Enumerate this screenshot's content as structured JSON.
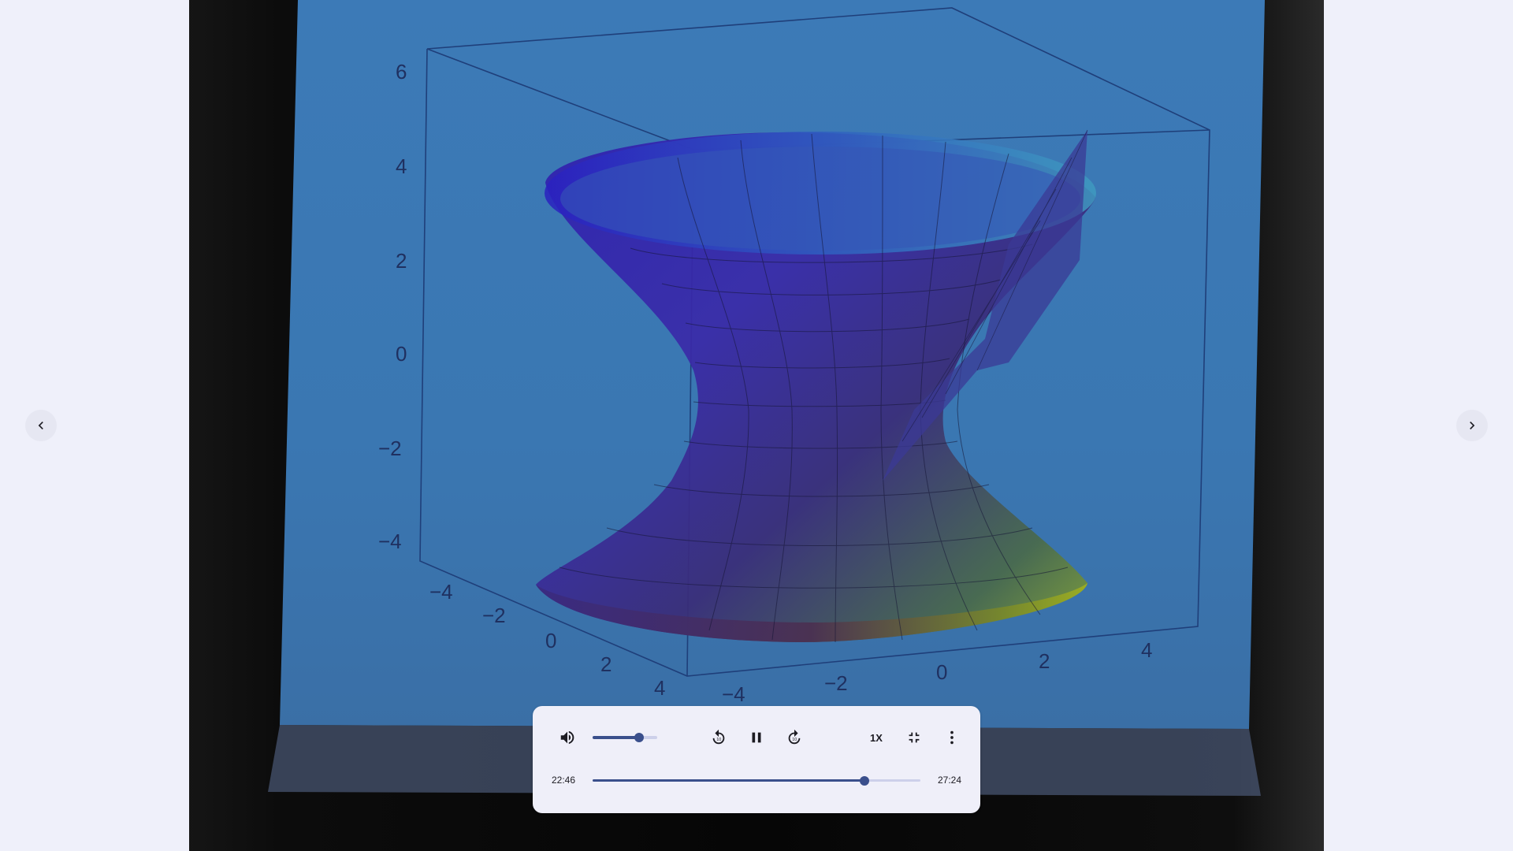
{
  "player": {
    "current_time": "22:46",
    "duration": "27:24",
    "progress_fraction": 0.83,
    "volume_fraction": 0.72,
    "speed_label": "1X"
  },
  "video": {
    "z_ticks": [
      "6",
      "4",
      "2",
      "0",
      "−2",
      "−4"
    ],
    "x_ticks": [
      "−4",
      "−2",
      "0",
      "2",
      "4"
    ],
    "y_ticks": [
      "−4",
      "−2",
      "0",
      "2",
      "4"
    ]
  },
  "icons": {
    "prev": "chevron-left-icon",
    "next": "chevron-right-icon",
    "volume": "volume-up-icon",
    "rewind": "replay-10-icon",
    "play_pause": "pause-icon",
    "forward": "forward-10-icon",
    "exit_fullscreen": "fullscreen-exit-icon",
    "more": "more-vert-icon"
  },
  "colors": {
    "accent": "#3a4f8c",
    "track": "#cdd0ea",
    "panel": "#efeff9",
    "page": "#eff0fa"
  }
}
